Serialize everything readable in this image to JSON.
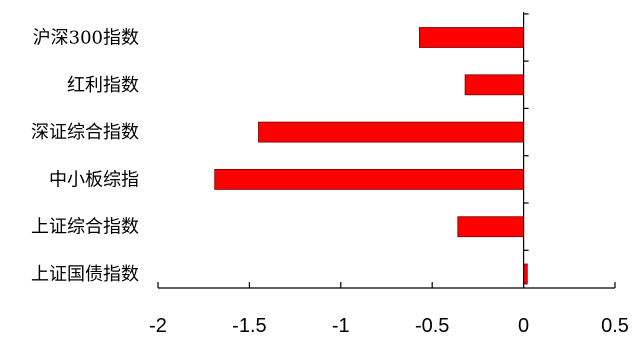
{
  "chart_data": {
    "type": "bar",
    "orientation": "horizontal",
    "categories": [
      "沪深300指数",
      "红利指数",
      "深证综合指数",
      "中小板综指",
      "上证综合指数",
      "上证国债指数"
    ],
    "values": [
      -0.57,
      -0.32,
      -1.45,
      -1.69,
      -0.36,
      0.02
    ],
    "xlim": [
      -2,
      0.5
    ],
    "xticks": [
      -2,
      -1.5,
      -1,
      -0.5,
      0,
      0.5
    ],
    "tick_labels": [
      "-2",
      "-1.5",
      "-1",
      "-0.5",
      "0",
      "0.5"
    ],
    "title": "",
    "xlabel": "",
    "ylabel": "",
    "grid": false,
    "legend": "none",
    "bar_color": "#ff0000"
  }
}
